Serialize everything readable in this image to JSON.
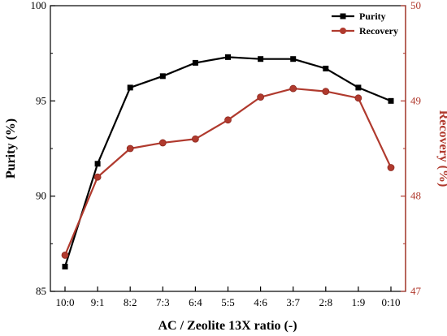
{
  "chart_data": {
    "type": "line",
    "categories": [
      "10:0",
      "9:1",
      "8:2",
      "7:3",
      "6:4",
      "5:5",
      "4:6",
      "3:7",
      "2:8",
      "1:9",
      "0:10"
    ],
    "xlabel": "AC / Zeolite 13X ratio (-)",
    "y_left": {
      "label": "Purity (%)",
      "ylim": [
        85,
        100
      ],
      "ticks": [
        85,
        90,
        95,
        100
      ]
    },
    "y_right": {
      "label": "Recovery (%)",
      "ylim": [
        47,
        50
      ],
      "ticks": [
        47,
        48,
        49,
        50
      ]
    },
    "series": [
      {
        "name": "Purity",
        "axis": "left",
        "marker": "square",
        "color": "#000000",
        "values": [
          86.3,
          91.7,
          95.7,
          96.3,
          97.0,
          97.3,
          97.2,
          97.2,
          96.7,
          95.7,
          95.0
        ]
      },
      {
        "name": "Recovery",
        "axis": "right",
        "marker": "circle",
        "color": "#b03a2e",
        "values": [
          47.38,
          48.2,
          48.5,
          48.56,
          48.6,
          48.8,
          49.04,
          49.13,
          49.1,
          49.03,
          48.3
        ]
      }
    ],
    "legend_position": "top-right",
    "grid": false
  }
}
